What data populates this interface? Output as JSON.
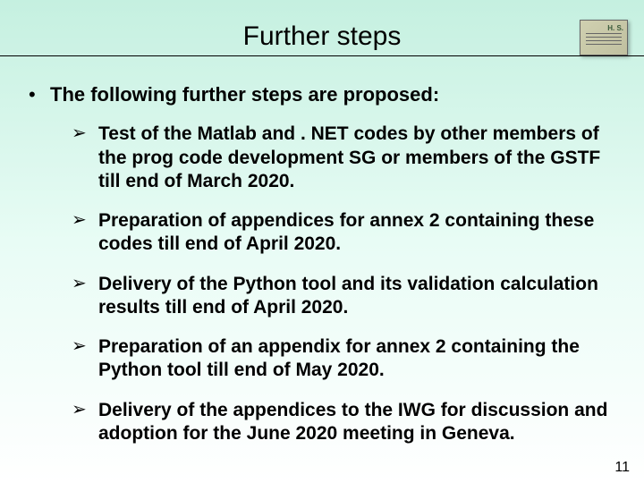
{
  "slide": {
    "title": "Further steps",
    "logo_text": "H. S.",
    "intro_bullet": "•",
    "intro_text": "The following further steps are proposed:",
    "arrow_bullet": "➢",
    "items": [
      "Test of the Matlab and . NET codes by other members of the prog code development SG or members of the GSTF till end of March 2020.",
      "Preparation of appendices for annex 2 containing these codes till end of April 2020.",
      "Delivery of the Python tool and its validation calculation results till end of April 2020.",
      "Preparation of an appendix for annex 2 containing the Python tool till end of May 2020.",
      "Delivery of the appendices to the IWG for discussion and adoption for the June 2020 meeting in Geneva."
    ],
    "page_number": "11"
  },
  "style": {
    "background_gradient_top": "#c5f0e0",
    "background_gradient_mid": "#e8fcf5",
    "background_gradient_bottom": "#ffffff",
    "title_fontsize": 30,
    "body_fontsize": 21,
    "text_color": "#000000"
  }
}
